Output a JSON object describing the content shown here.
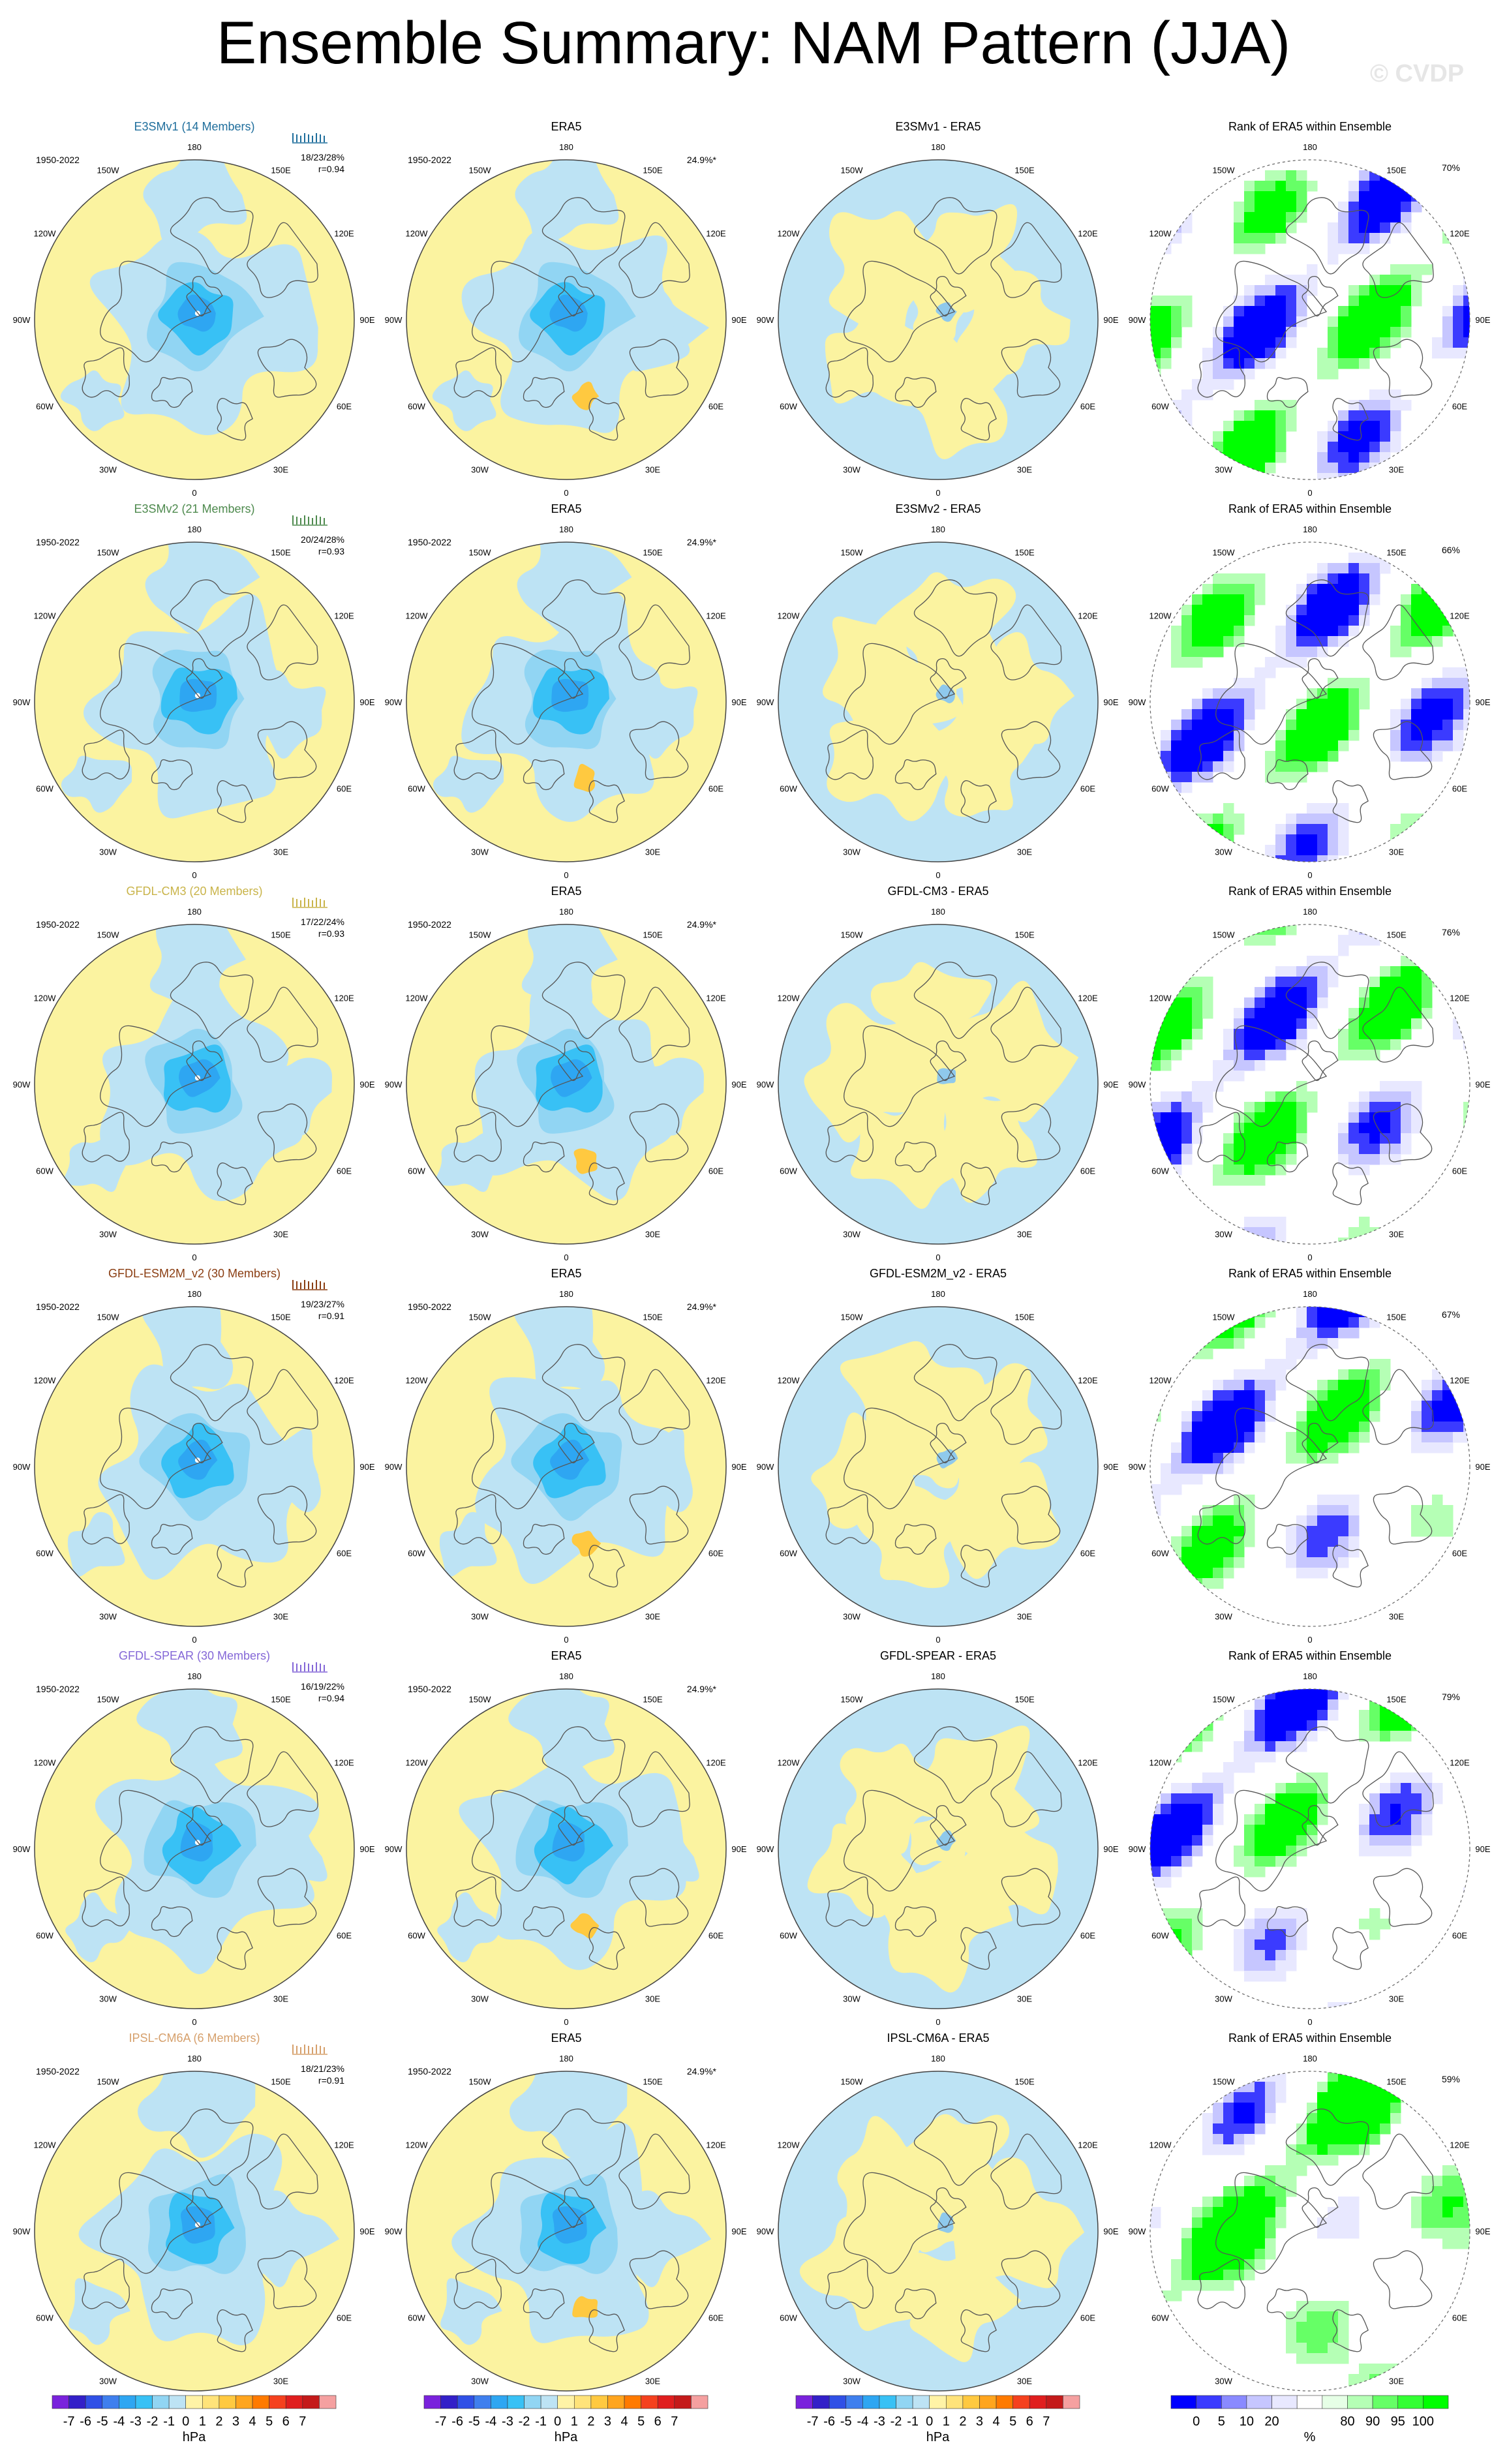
{
  "page": {
    "title": "Ensemble Summary: NAM Pattern (JJA)",
    "copyright": "© CVDP"
  },
  "colors": {
    "model_title_colors": [
      "#1f6e9c",
      "#4e8a4e",
      "#c9b44a",
      "#8a3d12",
      "#8467d7",
      "#d6a06c"
    ],
    "neg": [
      "#7a22dc",
      "#3320c8",
      "#3050e6",
      "#3f7fee",
      "#2ea6f2",
      "#38c1f5",
      "#91d5f3",
      "#bde3f4"
    ],
    "pos": [
      "#fff3a6",
      "#ffe37a",
      "#ffc940",
      "#ffa51e",
      "#ff7a00",
      "#f5411e",
      "#e01e1e",
      "#c41a1a",
      "#f5a0a0"
    ],
    "rank_scale": [
      "#0000ff",
      "#3b3bff",
      "#8a8aff",
      "#c6c6ff",
      "#e8e8ff",
      "#ffffff",
      "#e6ffe6",
      "#b5ffb5",
      "#66ff66",
      "#33ff33",
      "#00ff00"
    ],
    "land_map_bg": "#fbf3a0",
    "ocean_neg": "#bde3f4"
  },
  "chart_data": {
    "type": "map",
    "period": "1950-2022",
    "columns": [
      "ensemble_mean",
      "observations",
      "difference",
      "rank"
    ],
    "longitude_labels": [
      "180",
      "150E",
      "120E",
      "90E",
      "60E",
      "30E",
      "0",
      "30W",
      "60W",
      "90W",
      "120W",
      "150W"
    ],
    "observed_pct_variance": "24.9%*",
    "rows": [
      {
        "model": "E3SMv1 (14 Members)",
        "pcts": "18/23/28%",
        "r": "r=0.94",
        "obs": "ERA5",
        "diff_title": "E3SMv1 - ERA5",
        "rank_title": "Rank of ERA5 within Ensemble",
        "rank_pct": "70%"
      },
      {
        "model": "E3SMv2 (21 Members)",
        "pcts": "20/24/28%",
        "r": "r=0.93",
        "obs": "ERA5",
        "diff_title": "E3SMv2 - ERA5",
        "rank_title": "Rank of ERA5 within Ensemble",
        "rank_pct": "66%"
      },
      {
        "model": "GFDL-CM3 (20 Members)",
        "pcts": "17/22/24%",
        "r": "r=0.93",
        "obs": "ERA5",
        "diff_title": "GFDL-CM3 - ERA5",
        "rank_title": "Rank of ERA5 within Ensemble",
        "rank_pct": "76%"
      },
      {
        "model": "GFDL-ESM2M_v2 (30 Members)",
        "pcts": "19/23/27%",
        "r": "r=0.91",
        "obs": "ERA5",
        "diff_title": "GFDL-ESM2M_v2 - ERA5",
        "rank_title": "Rank of ERA5 within Ensemble",
        "rank_pct": "67%"
      },
      {
        "model": "GFDL-SPEAR (30 Members)",
        "pcts": "16/19/22%",
        "r": "r=0.94",
        "obs": "ERA5",
        "diff_title": "GFDL-SPEAR - ERA5",
        "rank_title": "Rank of ERA5 within Ensemble",
        "rank_pct": "79%"
      },
      {
        "model": "IPSL-CM6A (6 Members)",
        "pcts": "18/21/23%",
        "r": "r=0.91",
        "obs": "ERA5",
        "diff_title": "IPSL-CM6A - ERA5",
        "rank_title": "Rank of ERA5 within Ensemble",
        "rank_pct": "59%"
      }
    ],
    "colorbar_hpa": {
      "labels": [
        "-7",
        "-6",
        "-5",
        "-4",
        "-3",
        "-2",
        "-1",
        "0",
        "1",
        "2",
        "3",
        "4",
        "5",
        "6",
        "7"
      ],
      "unit": "hPa"
    },
    "colorbar_rank": {
      "labels": [
        "0",
        "5",
        "10",
        "20",
        "80",
        "90",
        "95",
        "100"
      ],
      "unit": "%"
    }
  }
}
